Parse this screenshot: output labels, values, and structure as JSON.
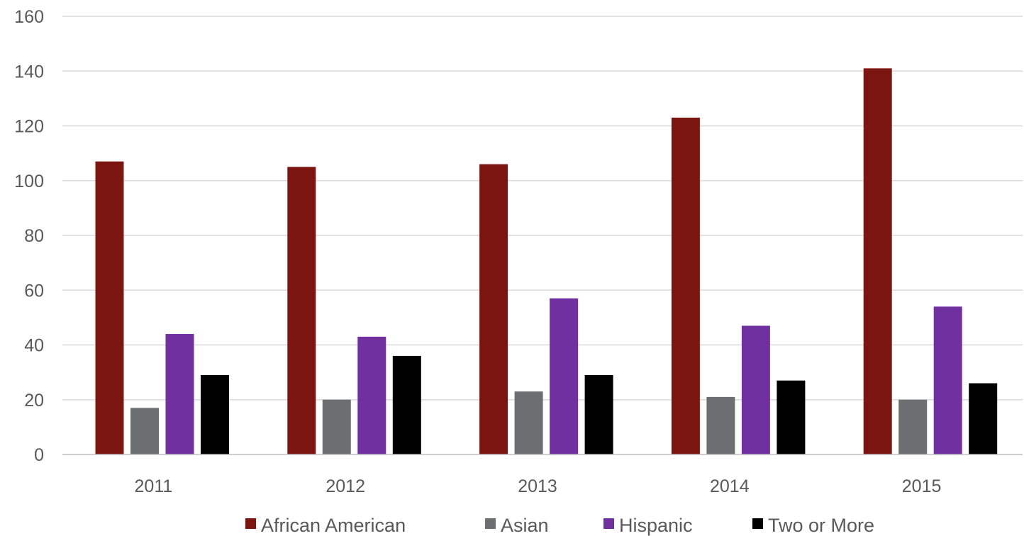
{
  "chart_data": {
    "type": "bar",
    "title": "",
    "xlabel": "",
    "ylabel": "",
    "categories": [
      "2011",
      "2012",
      "2013",
      "2014",
      "2015"
    ],
    "series": [
      {
        "name": "African American",
        "color": "#7b1510",
        "values": [
          107,
          105,
          106,
          123,
          141
        ]
      },
      {
        "name": "Asian",
        "color": "#6d6e71",
        "values": [
          17,
          20,
          23,
          21,
          20
        ]
      },
      {
        "name": "Hispanic",
        "color": "#7030a0",
        "values": [
          44,
          43,
          57,
          47,
          54
        ]
      },
      {
        "name": "Two or More",
        "color": "#000000",
        "values": [
          29,
          36,
          29,
          27,
          26
        ]
      }
    ],
    "ylim": [
      0,
      160
    ],
    "yticks": [
      0,
      20,
      40,
      60,
      80,
      100,
      120,
      140,
      160
    ],
    "grid": true,
    "legend_position": "bottom"
  }
}
